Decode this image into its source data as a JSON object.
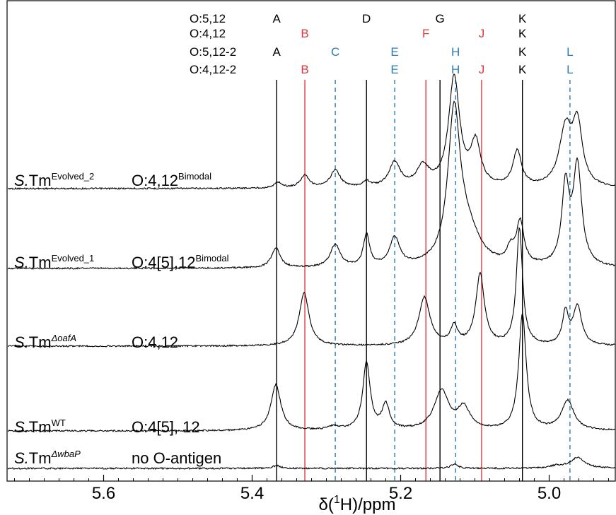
{
  "chart_data": {
    "type": "line",
    "xlabel": "δ(¹H)/ppm",
    "xlabel_parts": {
      "pre": "δ(",
      "sup": "1",
      "post": "H)/ppm"
    },
    "x_axis": {
      "reversed": true,
      "xlim": [
        5.73,
        4.91
      ],
      "major_ticks": [
        5.6,
        5.4,
        5.2,
        5.0
      ],
      "major_tick_labels": [
        "5.6",
        "5.4",
        "5.2",
        "5.0"
      ],
      "minor_step": 0.02
    },
    "grid": false,
    "colors": {
      "black": "#000000",
      "red": "#e0383b",
      "blue": "#2a7ab8"
    },
    "header_rows": [
      {
        "label": "O:5,12",
        "letters": [
          "A",
          "D",
          "G",
          "K"
        ]
      },
      {
        "label": "O:4,12",
        "letters": [
          "B",
          "F",
          "J",
          "K"
        ]
      },
      {
        "label": "O:5,12-2",
        "letters": [
          "A",
          "C",
          "E",
          "H",
          "K",
          "L"
        ]
      },
      {
        "label": "O:4,12-2",
        "letters": [
          "B",
          "E",
          "H",
          "J",
          "K",
          "L"
        ]
      }
    ],
    "reference_lines": [
      {
        "letter": "A",
        "ppm": 5.367,
        "color": "black",
        "style": "solid"
      },
      {
        "letter": "B",
        "ppm": 5.329,
        "color": "red",
        "style": "solid"
      },
      {
        "letter": "C",
        "ppm": 5.288,
        "color": "blue",
        "style": "dashed"
      },
      {
        "letter": "D",
        "ppm": 5.246,
        "color": "black",
        "style": "solid"
      },
      {
        "letter": "E",
        "ppm": 5.208,
        "color": "blue",
        "style": "dashed"
      },
      {
        "letter": "F",
        "ppm": 5.166,
        "color": "red",
        "style": "solid"
      },
      {
        "letter": "G",
        "ppm": 5.147,
        "color": "black",
        "style": "solid"
      },
      {
        "letter": "H",
        "ppm": 5.126,
        "color": "blue",
        "style": "dashed"
      },
      {
        "letter": "J",
        "ppm": 5.091,
        "color": "red",
        "style": "solid"
      },
      {
        "letter": "K",
        "ppm": 5.036,
        "color": "black",
        "style": "solid"
      },
      {
        "letter": "L",
        "ppm": 4.972,
        "color": "blue",
        "style": "dashed"
      }
    ],
    "series": [
      {
        "name": "S.TmEvolved_2",
        "strain_prefix": "S.",
        "strain_base": "Tm",
        "strain_sup": "Evolved_2",
        "serotype_base": "O:4,12",
        "serotype_sup": "Bimodal",
        "baseline": 267,
        "scale": 1.0,
        "peaks": [
          [
            5.365,
            8,
            0.006
          ],
          [
            5.329,
            18,
            0.007
          ],
          [
            5.288,
            25,
            0.008
          ],
          [
            5.246,
            8,
            0.006
          ],
          [
            5.208,
            35,
            0.009
          ],
          [
            5.17,
            28,
            0.01
          ],
          [
            5.128,
            155,
            0.009
          ],
          [
            5.099,
            60,
            0.008
          ],
          [
            5.043,
            50,
            0.007
          ],
          [
            4.978,
            80,
            0.01
          ],
          [
            4.962,
            85,
            0.008
          ]
        ]
      },
      {
        "name": "S.TmEvolved_1",
        "strain_prefix": "S.",
        "strain_base": "Tm",
        "strain_sup": "Evolved_1",
        "serotype_base": "O:4[5],12",
        "serotype_sup": "Bimodal",
        "baseline": 380,
        "scale": 1.0,
        "peaks": [
          [
            5.368,
            28,
            0.007
          ],
          [
            5.288,
            32,
            0.008
          ],
          [
            5.246,
            45,
            0.005
          ],
          [
            5.208,
            40,
            0.008
          ],
          [
            5.128,
            210,
            0.01
          ],
          [
            5.11,
            45,
            0.02
          ],
          [
            5.052,
            20,
            0.006
          ],
          [
            5.039,
            60,
            0.006
          ],
          [
            4.978,
            110,
            0.006
          ],
          [
            4.962,
            140,
            0.007
          ]
        ]
      },
      {
        "name": "S.TmΔoafA",
        "strain_prefix": "S.",
        "strain_base": "Tm",
        "strain_sup": "ΔoafA",
        "serotype_base": "O:4,12",
        "serotype_sup": "",
        "baseline": 490,
        "scale": 1.0,
        "peaks": [
          [
            5.33,
            75,
            0.008
          ],
          [
            5.168,
            68,
            0.009
          ],
          [
            5.128,
            25,
            0.006
          ],
          [
            5.093,
            100,
            0.007
          ],
          [
            5.04,
            165,
            0.005
          ],
          [
            4.978,
            45,
            0.005
          ],
          [
            4.962,
            55,
            0.007
          ]
        ]
      },
      {
        "name": "S.TmWT",
        "strain_prefix": "S.",
        "strain_base": "Tm",
        "strain_sup": "WT",
        "serotype_base": "O:4[5], 12",
        "serotype_sup": "",
        "baseline": 610,
        "scale": 1.0,
        "peaks": [
          [
            5.368,
            65,
            0.008
          ],
          [
            5.29,
            5,
            0.01
          ],
          [
            5.246,
            95,
            0.006
          ],
          [
            5.22,
            35,
            0.006
          ],
          [
            5.145,
            55,
            0.012
          ],
          [
            5.115,
            30,
            0.01
          ],
          [
            5.036,
            165,
            0.006
          ],
          [
            4.975,
            42,
            0.01
          ]
        ]
      },
      {
        "name": "S.TmΔwbaP",
        "strain_prefix": "S.",
        "strain_base": "Tm",
        "strain_sup": "ΔwbaP",
        "serotype_base": "no O-antigen",
        "serotype_sup": "",
        "baseline": 663,
        "scale": 1.0,
        "peaks": [
          [
            5.367,
            4,
            0.006
          ],
          [
            5.128,
            6,
            0.006
          ],
          [
            4.99,
            3,
            0.01
          ],
          [
            4.962,
            15,
            0.012
          ]
        ]
      }
    ]
  }
}
